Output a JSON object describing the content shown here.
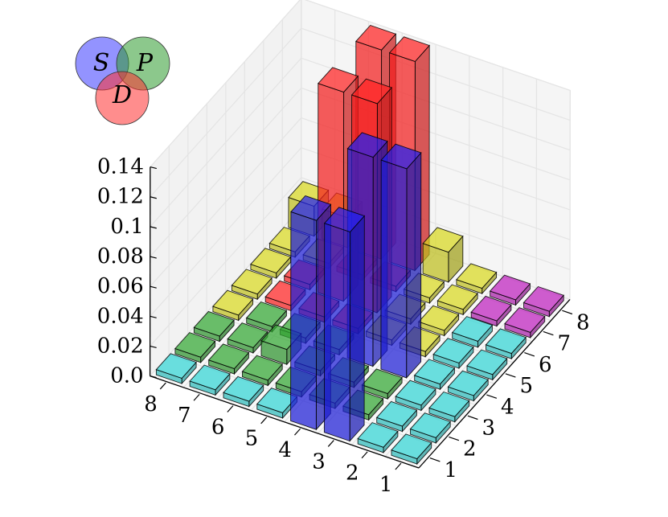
{
  "chart_data": {
    "type": "bar3d",
    "title": "",
    "x_ticks": [
      "1",
      "2",
      "3",
      "4",
      "5",
      "6",
      "7",
      "8"
    ],
    "y_ticks": [
      "1",
      "2",
      "3",
      "4",
      "5",
      "6",
      "7",
      "8"
    ],
    "z_ticks": [
      "0.0",
      "0.02",
      "0.04",
      "0.06",
      "0.08",
      "0.1",
      "0.12",
      "0.14"
    ],
    "zlim": [
      0,
      0.14
    ],
    "grid": true,
    "legend": {
      "style": "venn",
      "placement": "top-left",
      "sets": [
        {
          "label": "S",
          "color": "#3b3bff"
        },
        {
          "label": "P",
          "color": "#2e9a2e"
        },
        {
          "label": "D",
          "color": "#ff3030"
        }
      ]
    },
    "cell_colors": {
      "cyan": "#2ec4c4",
      "yellow": "#c8c81e",
      "green": "#2e9a2e",
      "magenta": "#b01eb0",
      "red": "#ff2020",
      "blue": "#1e1ee0"
    },
    "bars": [
      {
        "x": 1,
        "y": 1,
        "z": 0.0,
        "color": "cyan"
      },
      {
        "x": 1,
        "y": 2,
        "z": 0.0,
        "color": "cyan"
      },
      {
        "x": 1,
        "y": 3,
        "z": 0.0,
        "color": "cyan"
      },
      {
        "x": 1,
        "y": 4,
        "z": 0.0,
        "color": "cyan"
      },
      {
        "x": 1,
        "y": 5,
        "z": 0.0,
        "color": "cyan"
      },
      {
        "x": 1,
        "y": 6,
        "z": 0.0,
        "color": "cyan"
      },
      {
        "x": 1,
        "y": 7,
        "z": 0.0,
        "color": "magenta"
      },
      {
        "x": 1,
        "y": 8,
        "z": 0.0,
        "color": "magenta"
      },
      {
        "x": 2,
        "y": 1,
        "z": 0.0,
        "color": "cyan"
      },
      {
        "x": 2,
        "y": 2,
        "z": 0.0,
        "color": "cyan"
      },
      {
        "x": 2,
        "y": 3,
        "z": 0.0,
        "color": "cyan"
      },
      {
        "x": 2,
        "y": 4,
        "z": 0.0,
        "color": "cyan"
      },
      {
        "x": 2,
        "y": 5,
        "z": 0.0,
        "color": "cyan"
      },
      {
        "x": 2,
        "y": 6,
        "z": 0.004,
        "color": "cyan"
      },
      {
        "x": 2,
        "y": 7,
        "z": 0.0,
        "color": "magenta"
      },
      {
        "x": 2,
        "y": 8,
        "z": 0.0,
        "color": "magenta"
      },
      {
        "x": 3,
        "y": 1,
        "z": 0.14,
        "color": "blue"
      },
      {
        "x": 3,
        "y": 2,
        "z": 0.0,
        "color": "green"
      },
      {
        "x": 3,
        "y": 3,
        "z": 0.0,
        "color": "green"
      },
      {
        "x": 3,
        "y": 4,
        "z": 0.14,
        "color": "blue"
      },
      {
        "x": 3,
        "y": 5,
        "z": 0.0,
        "color": "yellow"
      },
      {
        "x": 3,
        "y": 6,
        "z": 0.0,
        "color": "yellow"
      },
      {
        "x": 3,
        "y": 7,
        "z": 0.0,
        "color": "yellow"
      },
      {
        "x": 3,
        "y": 8,
        "z": 0.0,
        "color": "yellow"
      },
      {
        "x": 4,
        "y": 1,
        "z": 0.14,
        "color": "blue"
      },
      {
        "x": 4,
        "y": 2,
        "z": 0.0,
        "color": "green"
      },
      {
        "x": 4,
        "y": 3,
        "z": 0.0,
        "color": "green"
      },
      {
        "x": 4,
        "y": 4,
        "z": 0.14,
        "color": "blue"
      },
      {
        "x": 4,
        "y": 5,
        "z": 0.0,
        "color": "yellow"
      },
      {
        "x": 4,
        "y": 6,
        "z": 0.0,
        "color": "yellow"
      },
      {
        "x": 4,
        "y": 7,
        "z": 0.0,
        "color": "yellow"
      },
      {
        "x": 4,
        "y": 8,
        "z": 0.02,
        "color": "yellow"
      },
      {
        "x": 5,
        "y": 1,
        "z": 0.0,
        "color": "cyan"
      },
      {
        "x": 5,
        "y": 2,
        "z": 0.0,
        "color": "green"
      },
      {
        "x": 5,
        "y": 3,
        "z": 0.0,
        "color": "green"
      },
      {
        "x": 5,
        "y": 4,
        "z": 0.0,
        "color": "green"
      },
      {
        "x": 5,
        "y": 5,
        "z": 0.0,
        "color": "red"
      },
      {
        "x": 5,
        "y": 6,
        "z": 0.14,
        "color": "red"
      },
      {
        "x": 5,
        "y": 7,
        "z": 0.0,
        "color": "red"
      },
      {
        "x": 5,
        "y": 8,
        "z": 0.14,
        "color": "red"
      },
      {
        "x": 6,
        "y": 1,
        "z": 0.0,
        "color": "cyan"
      },
      {
        "x": 6,
        "y": 2,
        "z": 0.0,
        "color": "green"
      },
      {
        "x": 6,
        "y": 3,
        "z": 0.01,
        "color": "green"
      },
      {
        "x": 6,
        "y": 4,
        "z": 0.0,
        "color": "green"
      },
      {
        "x": 6,
        "y": 5,
        "z": 0.0,
        "color": "red"
      },
      {
        "x": 6,
        "y": 6,
        "z": 0.14,
        "color": "red"
      },
      {
        "x": 6,
        "y": 7,
        "z": 0.0,
        "color": "red"
      },
      {
        "x": 6,
        "y": 8,
        "z": 0.14,
        "color": "red"
      },
      {
        "x": 7,
        "y": 1,
        "z": 0.0,
        "color": "cyan"
      },
      {
        "x": 7,
        "y": 2,
        "z": 0.0,
        "color": "green"
      },
      {
        "x": 7,
        "y": 3,
        "z": 0.0,
        "color": "green"
      },
      {
        "x": 7,
        "y": 4,
        "z": 0.0,
        "color": "green"
      },
      {
        "x": 7,
        "y": 5,
        "z": 0.0,
        "color": "red"
      },
      {
        "x": 7,
        "y": 6,
        "z": 0.0,
        "color": "red"
      },
      {
        "x": 7,
        "y": 7,
        "z": 0.0,
        "color": "yellow"
      },
      {
        "x": 7,
        "y": 8,
        "z": 0.02,
        "color": "yellow"
      },
      {
        "x": 8,
        "y": 1,
        "z": 0.0,
        "color": "cyan"
      },
      {
        "x": 8,
        "y": 2,
        "z": 0.0,
        "color": "green"
      },
      {
        "x": 8,
        "y": 3,
        "z": 0.0,
        "color": "green"
      },
      {
        "x": 8,
        "y": 4,
        "z": 0.0,
        "color": "yellow"
      },
      {
        "x": 8,
        "y": 5,
        "z": 0.0,
        "color": "yellow"
      },
      {
        "x": 8,
        "y": 6,
        "z": 0.0,
        "color": "yellow"
      },
      {
        "x": 8,
        "y": 7,
        "z": 0.0,
        "color": "yellow"
      },
      {
        "x": 8,
        "y": 8,
        "z": 0.02,
        "color": "yellow"
      }
    ]
  }
}
